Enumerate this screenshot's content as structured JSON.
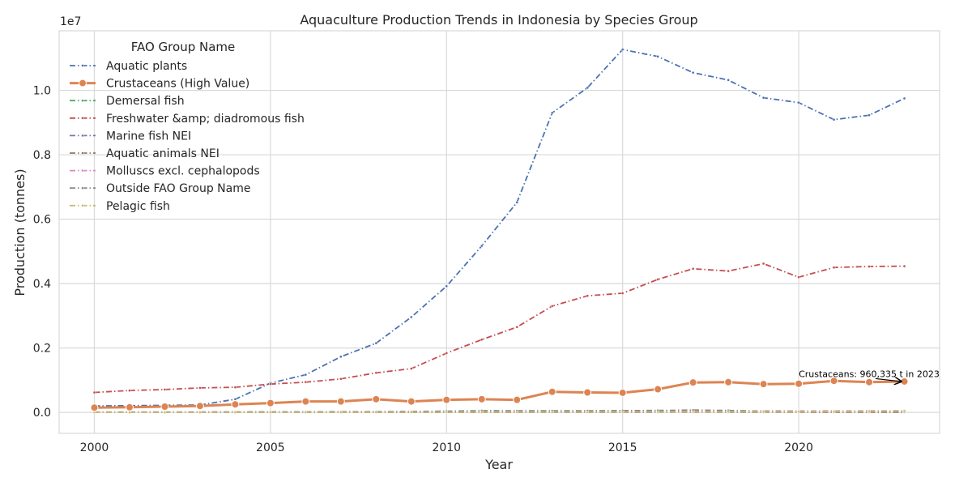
{
  "chart_data": {
    "type": "line",
    "title": "Aquaculture Production Trends in Indonesia by Species Group",
    "xlabel": "Year",
    "ylabel": "Production (tonnes)",
    "y_scale_label": "1e7",
    "xlim": [
      1999,
      2024
    ],
    "ylim": [
      -650000,
      11850000
    ],
    "x_ticks": [
      2000,
      2005,
      2010,
      2015,
      2020
    ],
    "y_ticks": [
      0,
      2000000,
      4000000,
      6000000,
      8000000,
      10000000
    ],
    "y_tick_labels": [
      "0.0",
      "0.2",
      "0.4",
      "0.6",
      "0.8",
      "1.0"
    ],
    "grid": true,
    "legend": {
      "title": "FAO Group Name",
      "position": "top-left"
    },
    "x": [
      2000,
      2001,
      2002,
      2003,
      2004,
      2005,
      2006,
      2007,
      2008,
      2009,
      2010,
      2011,
      2012,
      2013,
      2014,
      2015,
      2016,
      2017,
      2018,
      2019,
      2020,
      2021,
      2022,
      2023
    ],
    "series": [
      {
        "name": "Aquatic plants",
        "color": "#4c72b0",
        "dash": "dashdot",
        "marker": "dot",
        "emphasis": false,
        "values": [
          200000,
          210000,
          220000,
          230000,
          410000,
          910000,
          1170000,
          1730000,
          2150000,
          2960000,
          3920000,
          5170000,
          6520000,
          9300000,
          10080000,
          11270000,
          11050000,
          10550000,
          10320000,
          9770000,
          9620000,
          9090000,
          9230000,
          9750000
        ]
      },
      {
        "name": "Crustaceans (High Value)",
        "color": "#dd8452",
        "dash": "solid",
        "marker": "circle",
        "emphasis": true,
        "values": [
          150000,
          160000,
          180000,
          200000,
          250000,
          290000,
          340000,
          340000,
          410000,
          340000,
          390000,
          410000,
          390000,
          640000,
          620000,
          610000,
          720000,
          930000,
          940000,
          880000,
          890000,
          980000,
          940000,
          960335
        ]
      },
      {
        "name": "Demersal fish",
        "color": "#55a868",
        "dash": "dashdot",
        "marker": "dot",
        "emphasis": false,
        "values": [
          5000,
          5000,
          6000,
          6000,
          7000,
          7000,
          8000,
          8000,
          9000,
          10000,
          11000,
          12000,
          14000,
          15000,
          17000,
          19000,
          20000,
          22000,
          24000,
          25000,
          26000,
          27000,
          29000,
          30000
        ]
      },
      {
        "name": "Freshwater &amp; diadromous fish",
        "color": "#c44e52",
        "dash": "dashdot",
        "marker": "dot",
        "emphasis": false,
        "values": [
          620000,
          680000,
          710000,
          760000,
          780000,
          880000,
          940000,
          1040000,
          1230000,
          1360000,
          1840000,
          2260000,
          2650000,
          3300000,
          3620000,
          3700000,
          4130000,
          4460000,
          4390000,
          4620000,
          4200000,
          4500000,
          4530000,
          4540000
        ]
      },
      {
        "name": "Marine fish NEI",
        "color": "#8172b3",
        "dash": "dashdot",
        "marker": "dot",
        "emphasis": false,
        "values": [
          1000,
          1000,
          1000,
          2000,
          2000,
          3000,
          4000,
          5000,
          6000,
          8000,
          9000,
          10000,
          11000,
          12000,
          13000,
          14000,
          15000,
          15000,
          16000,
          17000,
          18000,
          18000,
          19000,
          20000
        ]
      },
      {
        "name": "Aquatic animals NEI",
        "color": "#937860",
        "dash": "dashdot",
        "marker": "dot",
        "emphasis": false,
        "values": [
          1000,
          1000,
          1000,
          1000,
          1000,
          2000,
          2000,
          2000,
          3000,
          3000,
          3000,
          4000,
          4000,
          5000,
          5000,
          5000,
          6000,
          6000,
          6000,
          7000,
          7000,
          7000,
          8000,
          8000
        ]
      },
      {
        "name": "Molluscs excl. cephalopods",
        "color": "#da8bc3",
        "dash": "dashdot",
        "marker": "dot",
        "emphasis": false,
        "values": [
          8000,
          9000,
          9000,
          10000,
          12000,
          14000,
          16000,
          18000,
          20000,
          22000,
          25000,
          27000,
          29000,
          31000,
          33000,
          35000,
          37000,
          39000,
          41000,
          43000,
          45000,
          47000,
          49000,
          51000
        ]
      },
      {
        "name": "Outside FAO Group Name",
        "color": "#8c8c8c",
        "dash": "dashdot",
        "marker": "dot",
        "emphasis": false,
        "values": [
          10000,
          11000,
          12000,
          14000,
          16000,
          18000,
          20000,
          22000,
          25000,
          28000,
          40000,
          55000,
          48000,
          50000,
          52000,
          56000,
          60000,
          75000,
          60000,
          40000,
          35000,
          30000,
          28000,
          27000
        ]
      },
      {
        "name": "Pelagic fish",
        "color": "#ccb974",
        "dash": "dashdot",
        "marker": "dot",
        "emphasis": false,
        "values": [
          2000,
          2000,
          3000,
          3000,
          4000,
          4000,
          5000,
          5000,
          6000,
          6000,
          7000,
          8000,
          9000,
          10000,
          11000,
          12000,
          14000,
          16000,
          18000,
          20000,
          22000,
          30000,
          40000,
          50000
        ]
      }
    ],
    "annotations": [
      {
        "text": "Crustaceans: 960,335 t in 2023",
        "x": 2023,
        "y": 960335,
        "text_x": 2020,
        "text_y": 1100000
      }
    ]
  }
}
